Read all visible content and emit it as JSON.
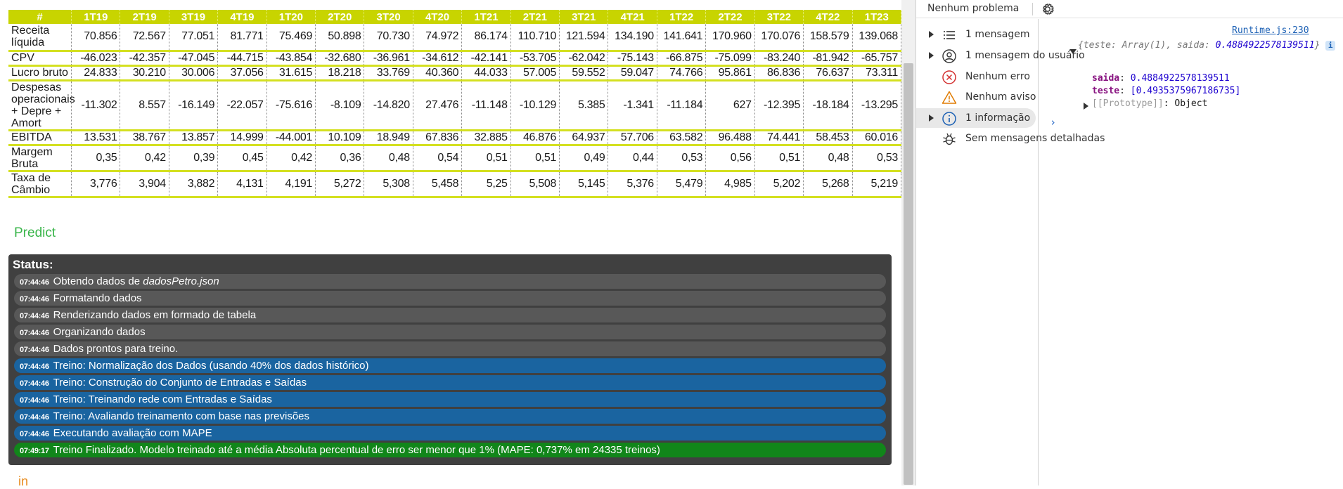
{
  "table": {
    "headers": [
      "#",
      "1T19",
      "2T19",
      "3T19",
      "4T19",
      "1T20",
      "2T20",
      "3T20",
      "4T20",
      "1T21",
      "2T21",
      "3T21",
      "4T21",
      "1T22",
      "2T22",
      "3T22",
      "4T22",
      "1T23"
    ],
    "rows": [
      {
        "label": "Receita líquida",
        "values": [
          "70.856",
          "72.567",
          "77.051",
          "81.771",
          "75.469",
          "50.898",
          "70.730",
          "74.972",
          "86.174",
          "110.710",
          "121.594",
          "134.190",
          "141.641",
          "170.960",
          "170.076",
          "158.579",
          "139.068"
        ]
      },
      {
        "label": "CPV",
        "values": [
          "-46.023",
          "-42.357",
          "-47.045",
          "-44.715",
          "-43.854",
          "-32.680",
          "-36.961",
          "-34.612",
          "-42.141",
          "-53.705",
          "-62.042",
          "-75.143",
          "-66.875",
          "-75.099",
          "-83.240",
          "-81.942",
          "-65.757"
        ]
      },
      {
        "label": "Lucro bruto",
        "values": [
          "24.833",
          "30.210",
          "30.006",
          "37.056",
          "31.615",
          "18.218",
          "33.769",
          "40.360",
          "44.033",
          "57.005",
          "59.552",
          "59.047",
          "74.766",
          "95.861",
          "86.836",
          "76.637",
          "73.311"
        ]
      },
      {
        "label": "Despesas operacionais + Depre + Amort",
        "values": [
          "-11.302",
          "8.557",
          "-16.149",
          "-22.057",
          "-75.616",
          "-8.109",
          "-14.820",
          "27.476",
          "-11.148",
          "-10.129",
          "5.385",
          "-1.341",
          "-11.184",
          "627",
          "-12.395",
          "-18.184",
          "-13.295"
        ]
      },
      {
        "label": "EBITDA",
        "values": [
          "13.531",
          "38.767",
          "13.857",
          "14.999",
          "-44.001",
          "10.109",
          "18.949",
          "67.836",
          "32.885",
          "46.876",
          "64.937",
          "57.706",
          "63.582",
          "96.488",
          "74.441",
          "58.453",
          "60.016"
        ]
      },
      {
        "label": "Margem Bruta",
        "values": [
          "0,35",
          "0,42",
          "0,39",
          "0,45",
          "0,42",
          "0,36",
          "0,48",
          "0,54",
          "0,51",
          "0,51",
          "0,49",
          "0,44",
          "0,53",
          "0,56",
          "0,51",
          "0,48",
          "0,53"
        ]
      },
      {
        "label": "Taxa de Câmbio",
        "values": [
          "3,776",
          "3,904",
          "3,882",
          "4,131",
          "4,191",
          "5,272",
          "5,308",
          "5,458",
          "5,25",
          "5,508",
          "5,145",
          "5,376",
          "5,479",
          "4,985",
          "5,202",
          "5,268",
          "5,219"
        ]
      }
    ]
  },
  "predict": {
    "title": "Predict"
  },
  "status": {
    "title": "Status:",
    "logs": [
      {
        "time": "07:44:46",
        "text": "Obtendo dados de ",
        "italic": "dadosPetro.json",
        "kind": "gray"
      },
      {
        "time": "07:44:46",
        "text": "Formatando dados",
        "italic": "",
        "kind": "gray"
      },
      {
        "time": "07:44:46",
        "text": "Renderizando dados em formado de tabela",
        "italic": "",
        "kind": "gray"
      },
      {
        "time": "07:44:46",
        "text": "Organizando dados",
        "italic": "",
        "kind": "gray"
      },
      {
        "time": "07:44:46",
        "text": "Dados prontos para treino.",
        "italic": "",
        "kind": "gray"
      },
      {
        "time": "07:44:46",
        "text": "Treino: Normalização dos Dados (usando 40% dos dados histórico)",
        "italic": "",
        "kind": "blue"
      },
      {
        "time": "07:44:46",
        "text": "Treino: Construção do Conjunto de Entradas e Saídas",
        "italic": "",
        "kind": "blue"
      },
      {
        "time": "07:44:46",
        "text": "Treino: Treinando rede com Entradas e Saídas",
        "italic": "",
        "kind": "blue"
      },
      {
        "time": "07:44:46",
        "text": "Treino: Avaliando treinamento com base nas previsões",
        "italic": "",
        "kind": "blue"
      },
      {
        "time": "07:44:46",
        "text": "Executando avaliação com MAPE",
        "italic": "",
        "kind": "blue"
      },
      {
        "time": "07:49:17",
        "text": "Treino Finalizado. Modelo treinado até a média Absoluta percentual de erro ser menor que 1% (MAPE: 0,737% em 24335 treinos)",
        "italic": "",
        "kind": "green"
      }
    ]
  },
  "bottom_fragment": "in",
  "devtools": {
    "problems_label": "Nenhum problema",
    "sidebar": [
      {
        "label": "1 mensagem",
        "icon": "list-icon",
        "has_arrow": true
      },
      {
        "label": "1 mensagem do usuário",
        "icon": "user-icon",
        "has_arrow": true
      },
      {
        "label": "Nenhum erro",
        "icon": "error-icon",
        "has_arrow": false
      },
      {
        "label": "Nenhum aviso",
        "icon": "warning-icon",
        "has_arrow": false
      },
      {
        "label": "1 informação",
        "icon": "info-icon",
        "has_arrow": true
      },
      {
        "label": "Sem mensagens detalhadas",
        "icon": "bug-icon",
        "has_arrow": false
      }
    ],
    "console": {
      "source": "Runtime.js:230",
      "summary_prefix": "{teste: Array(1), saida: ",
      "summary_value": "0.4884922578139511",
      "summary_suffix": "}",
      "info_badge": "i",
      "saida_key": "saida",
      "saida_value": "0.4884922578139511",
      "teste_key": "teste",
      "teste_value": "[0.4935375967186735]",
      "proto_label": "[[Prototype]]",
      "proto_value": "Object",
      "prompt": "›"
    }
  },
  "colors": {
    "header": "#c8d400",
    "predict": "#39b54a",
    "log_gray": "#585858",
    "log_blue": "#1a64a0",
    "log_green": "#11861a"
  }
}
